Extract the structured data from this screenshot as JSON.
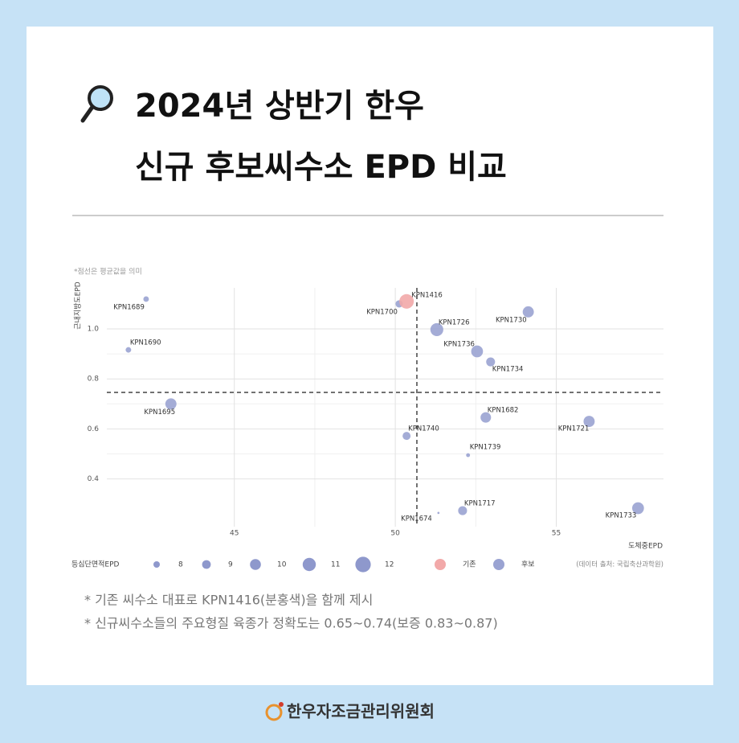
{
  "header": {
    "title_lines": [
      "2024년 상반기 한우",
      "신규 후보씨수소 EPD 비교"
    ]
  },
  "chart_data": {
    "type": "scatter",
    "note": "*점선은 평균값을 의미",
    "x_label": "도체중EPD",
    "y_label": "근내지방도EPD",
    "xlim": [
      41.04,
      58.33
    ],
    "ylim": [
      0.209,
      1.164
    ],
    "xticks": [
      45,
      50,
      55
    ],
    "yticks": [
      0.4,
      0.6,
      0.8,
      {
        "value": 1,
        "label": "1.0"
      }
    ],
    "grid": true,
    "mean_lines": {
      "x": 50.67,
      "y": 0.746
    },
    "size_legend": {
      "title": "등심단면적EPD",
      "values": [
        8,
        9,
        10,
        11,
        12
      ]
    },
    "series": [
      {
        "name": "기존",
        "color": "#f2a9a9",
        "labels": [
          "KPN1416"
        ],
        "x": [
          50.35
        ],
        "y": [
          1.11
        ],
        "sizes": [
          11.6
        ]
      },
      {
        "name": "후보",
        "color": "#9aa3d2",
        "labels": [
          "KPN1689",
          "KPN1690",
          "KPN1695",
          "KPN1700",
          "KPN1726",
          "KPN1730",
          "KPN1736",
          "KPN1734",
          "KPN1682",
          "KPN1721",
          "KPN1740",
          "KPN1739",
          "KPN1717",
          "KPN1674",
          "KPN1733"
        ],
        "x": [
          42.26,
          41.71,
          43.03,
          50.12,
          51.29,
          54.13,
          52.54,
          52.96,
          52.81,
          56.02,
          50.35,
          52.26,
          52.09,
          51.34,
          57.54
        ],
        "y": [
          1.119,
          0.916,
          0.7,
          1.1,
          0.997,
          1.068,
          0.91,
          0.868,
          0.646,
          0.63,
          0.572,
          0.495,
          0.273,
          0.264,
          0.283
        ],
        "sizes": [
          7.6,
          7.6,
          10.1,
          8.4,
          10.9,
          10.1,
          10.4,
          9.1,
          9.8,
          10.1,
          8.7,
          6.9,
          9.1,
          6.1,
          10.4
        ]
      }
    ],
    "source": "(데이터 출처: 국립축산과학원)"
  },
  "notes": [
    "* 기존 씨수소 대표로 KPN1416(분홍색)을 함께 제시",
    "* 신규씨수소들의 주요형질 육종가 정확도는 0.65~0.74(보증 0.83~0.87)"
  ],
  "footer": {
    "org": "한우자조금관리위원회"
  }
}
